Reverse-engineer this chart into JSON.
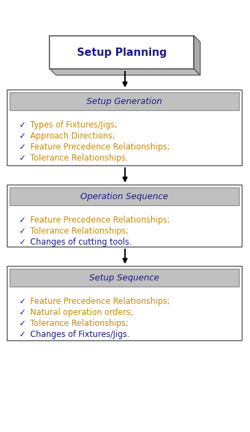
{
  "title_box": {
    "text": "Setup Planning",
    "text_color": "#1a1a8c",
    "font_size": 11,
    "bold": true
  },
  "sections": [
    {
      "header": "Setup Generation",
      "header_color": "#1a1a8c",
      "items": [
        {
          "text": "Types of Fixtures/Jigs;",
          "color": "#cc8800"
        },
        {
          "text": "Approach Directions;",
          "color": "#cc8800"
        },
        {
          "text": "Feature Precedence Relationships;",
          "color": "#cc8800"
        },
        {
          "text": "Tolerance Relationships.",
          "color": "#cc8800"
        }
      ]
    },
    {
      "header": "Operation Sequence",
      "header_color": "#1a1a8c",
      "items": [
        {
          "text": "Feature Precedence Relationships;",
          "color": "#cc8800"
        },
        {
          "text": "Tolerance Relationships;",
          "color": "#cc8800"
        },
        {
          "text": "Changes of cutting tools.",
          "color": "#1a1a8c"
        }
      ]
    },
    {
      "header": "Setup Sequence",
      "header_color": "#1a1a8c",
      "items": [
        {
          "text": "Feature Precedence Relationships;",
          "color": "#cc8800"
        },
        {
          "text": "Natural operation orders;",
          "color": "#cc8800"
        },
        {
          "text": "Tolerance Relationships;",
          "color": "#cc8800"
        },
        {
          "text": "Changes of Fixtures/Jigs.",
          "color": "#1a1a8c"
        }
      ]
    }
  ],
  "background_color": "#ffffff",
  "header_bg": "#c0c0c0",
  "box_border": "#555555",
  "check_color": "#1a1a8c",
  "arrow_color": "#000000",
  "font_size_header": 9,
  "font_size_item": 8.5,
  "fig_w": 364,
  "fig_h": 627
}
